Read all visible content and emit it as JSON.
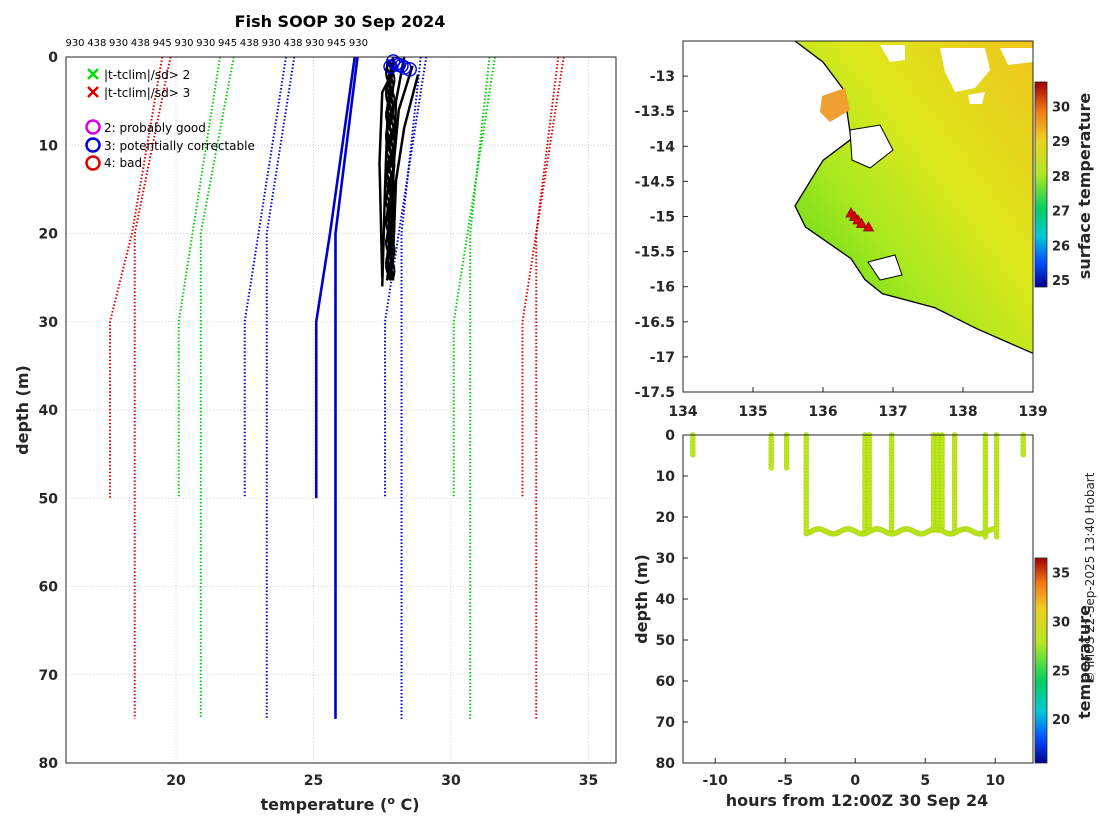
{
  "chart_data": [
    {
      "type": "line",
      "title": "Fish SOOP 30 Sep 2024",
      "xlabel": "temperature (",
      "xlabel_sup": "o",
      "xlabel_unit": " C)",
      "ylabel": "depth (m)",
      "xlim": [
        16,
        36
      ],
      "ylim": [
        80,
        0
      ],
      "x_ticks": [
        20,
        25,
        30,
        35
      ],
      "y_ticks": [
        0,
        10,
        20,
        30,
        40,
        50,
        60,
        70,
        80
      ],
      "grid": true,
      "top_labels": [
        "930",
        "438",
        "930",
        "438",
        "945",
        "930",
        "930",
        "945",
        "438",
        "930",
        "438",
        "930",
        "945",
        "930"
      ],
      "legend": [
        "|t-tclim|/sd> 2",
        "|t-tclim|/sd> 3",
        "2: probably good",
        "3: potentially correctable",
        "4: bad"
      ],
      "legend_colors": [
        "#00dd00",
        "#dd0000",
        "#dd00dd",
        "#0000dd",
        "#dd0000"
      ],
      "series": [
        {
          "name": "|t-tclim|/sd> 3",
          "color": "#dd0000",
          "style": "dotted",
          "lines": [
            {
              "x": [
                19.5,
                18.4,
                17.6,
                17.6
              ],
              "y": [
                0,
                20,
                30,
                50
              ]
            },
            {
              "x": [
                19.8,
                18.5,
                18.5
              ],
              "y": [
                0,
                20,
                75
              ]
            },
            {
              "x": [
                33.9,
                33.1,
                33.1
              ],
              "y": [
                0,
                20,
                75
              ]
            },
            {
              "x": [
                34.1,
                32.6,
                32.6
              ],
              "y": [
                0,
                30,
                50
              ]
            }
          ]
        },
        {
          "name": "|t-tclim|/sd> 2",
          "color": "#00cc00",
          "style": "dotted",
          "lines": [
            {
              "x": [
                21.6,
                20.1,
                20.1
              ],
              "y": [
                0,
                30,
                50
              ]
            },
            {
              "x": [
                22.1,
                20.9,
                20.9
              ],
              "y": [
                0,
                20,
                75
              ]
            },
            {
              "x": [
                31.4,
                30.7,
                30.7
              ],
              "y": [
                0,
                20,
                75
              ]
            },
            {
              "x": [
                31.6,
                30.1,
                30.1
              ],
              "y": [
                0,
                30,
                50
              ]
            }
          ]
        },
        {
          "color": "#0000cc",
          "style": "dotted",
          "lines": [
            {
              "x": [
                24.0,
                22.5,
                22.5
              ],
              "y": [
                0,
                30,
                50
              ]
            },
            {
              "x": [
                24.3,
                23.3,
                23.3
              ],
              "y": [
                0,
                20,
                75
              ]
            },
            {
              "x": [
                28.9,
                28.2,
                28.2
              ],
              "y": [
                0,
                20,
                75
              ]
            },
            {
              "x": [
                29.1,
                27.6,
                27.6
              ],
              "y": [
                0,
                30,
                50
              ]
            }
          ]
        },
        {
          "color": "#0000cc",
          "style": "solid",
          "lines": [
            {
              "x": [
                26.5,
                25.6,
                25.1,
                25.1
              ],
              "y": [
                0,
                20,
                30,
                50
              ]
            },
            {
              "x": [
                26.6,
                25.8,
                25.8
              ],
              "y": [
                0,
                20,
                75
              ]
            }
          ]
        },
        {
          "color": "#000000",
          "style": "solid",
          "lines": [
            {
              "x": [
                27.9,
                27.7,
                27.6,
                27.5
              ],
              "y": [
                0,
                6,
                15,
                26
              ]
            },
            {
              "x": [
                28.3,
                28.0,
                27.9,
                27.8
              ],
              "y": [
                0,
                5,
                14,
                25
              ]
            },
            {
              "x": [
                28.6,
                28.1,
                27.8,
                27.7
              ],
              "y": [
                1,
                6,
                16,
                24
              ]
            },
            {
              "x": [
                28.0,
                27.5,
                27.4,
                27.5
              ],
              "y": [
                1,
                4,
                12,
                25
              ]
            },
            {
              "x": [
                28.8,
                28.3,
                28.0,
                27.9
              ],
              "y": [
                2,
                8,
                14,
                22
              ]
            }
          ]
        }
      ],
      "flag_points": {
        "name": "3: potentially correctable",
        "color": "#0000dd",
        "x": [
          27.9,
          28.0,
          28.2,
          28.3,
          28.5,
          28.1,
          27.8
        ],
        "y": [
          0.5,
          0.8,
          1.0,
          1.2,
          1.4,
          0.9,
          1.1
        ]
      }
    },
    {
      "type": "heatmap",
      "xlim": [
        134,
        139
      ],
      "ylim": [
        -17.5,
        -12.5
      ],
      "x_ticks": [
        134,
        135,
        136,
        137,
        138,
        139
      ],
      "y_ticks": [
        -13,
        -13.5,
        -14,
        -14.5,
        -15,
        -15.5,
        -16,
        -16.5,
        -17,
        -17.5
      ],
      "colorbar_label": "surface temperature",
      "colorbar_ticks": [
        25,
        26,
        27,
        28,
        29,
        30
      ],
      "colorbar_range": [
        24.8,
        30.7
      ],
      "coastline": {
        "lon": [
          135.6,
          136.0,
          136.3,
          136.4,
          136.0,
          135.6,
          135.75,
          136.4,
          136.6,
          136.85,
          137.6,
          138.2,
          139.0
        ],
        "lat": [
          -12.5,
          -12.8,
          -13.2,
          -13.9,
          -14.2,
          -14.85,
          -15.15,
          -15.6,
          -15.9,
          -16.1,
          -16.3,
          -16.6,
          -16.95
        ]
      },
      "markers": {
        "lon": [
          136.4,
          136.45,
          136.5,
          136.55,
          136.65
        ],
        "lat": [
          -14.95,
          -15.0,
          -15.05,
          -15.1,
          -15.15
        ],
        "color": "#dd0000"
      }
    },
    {
      "type": "scatter",
      "xlabel": "hours from 12:00Z 30 Sep 24",
      "ylabel": "depth (m)",
      "xlim": [
        -12.3,
        12.7
      ],
      "ylim": [
        80,
        0
      ],
      "x_ticks": [
        -10,
        -5,
        0,
        5,
        10
      ],
      "y_ticks": [
        0,
        10,
        20,
        30,
        40,
        50,
        60,
        70,
        80
      ],
      "colorbar_label": "temperature",
      "colorbar_ticks": [
        20,
        25,
        30,
        35
      ],
      "colorbar_range": [
        15.5,
        36.5
      ],
      "point_color": "#bfe81c",
      "casts": [
        {
          "t": -11.6,
          "max_depth": 5
        },
        {
          "t": -6.0,
          "max_depth": 8
        },
        {
          "t": -4.9,
          "max_depth": 8
        },
        {
          "t": -3.5,
          "max_depth": 24
        },
        {
          "t": 0.7,
          "max_depth": 24
        },
        {
          "t": 1.0,
          "max_depth": 24
        },
        {
          "t": 2.6,
          "max_depth": 24
        },
        {
          "t": 5.6,
          "max_depth": 24
        },
        {
          "t": 5.9,
          "max_depth": 24
        },
        {
          "t": 6.2,
          "max_depth": 24
        },
        {
          "t": 7.1,
          "max_depth": 24
        },
        {
          "t": 9.3,
          "max_depth": 25
        },
        {
          "t": 10.1,
          "max_depth": 25
        },
        {
          "t": 12.0,
          "max_depth": 5
        }
      ],
      "bottom_band": {
        "t0": -3.5,
        "t1": 10.1,
        "depth": 23.5
      }
    }
  ],
  "credit": "© IMOS 22-Sep-2025 13:40 Hobart"
}
